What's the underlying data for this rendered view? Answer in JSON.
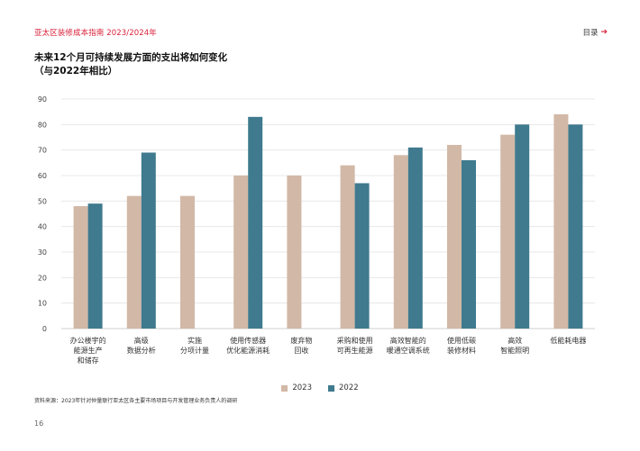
{
  "header": {
    "title": "亚太区装修成本指南 2023/2024年"
  },
  "toc": {
    "label": "目录",
    "arrow": "➔"
  },
  "colors": {
    "accent": "#d8203a",
    "series_2023": "#d2b8a6",
    "series_2022": "#3f7a8e",
    "grid": "#e3e3e3",
    "axis": "#bfbfbf"
  },
  "chart_data": {
    "type": "bar",
    "title": [
      "未来12个月可持续发展方面的支出将如何变化",
      "（与2022年相比）"
    ],
    "categories": [
      [
        "办公楼宇的",
        "能源生产",
        "和储存"
      ],
      [
        "高级",
        "数据分析"
      ],
      [
        "实施",
        "分项计量"
      ],
      [
        "使用传感器",
        "优化能源消耗"
      ],
      [
        "废弃物",
        "回收"
      ],
      [
        "采购和使用",
        "可再生能源"
      ],
      [
        "高效智能的",
        "暖通空调系统"
      ],
      [
        "使用低碳",
        "装修材料"
      ],
      [
        "高效",
        "智能照明"
      ],
      [
        "低能耗电器"
      ]
    ],
    "series": [
      {
        "name": "2023",
        "values": [
          48,
          52,
          52,
          60,
          60,
          64,
          68,
          72,
          76,
          84
        ]
      },
      {
        "name": "2022",
        "values": [
          49,
          69,
          null,
          83,
          null,
          57,
          71,
          66,
          80,
          80
        ]
      }
    ],
    "ylim": [
      0,
      90
    ],
    "yticks": [
      0,
      10,
      20,
      30,
      40,
      50,
      60,
      70,
      80,
      90
    ],
    "grid": true,
    "legend": "bottom-center"
  },
  "source": "资料来源：2023年针对仲量联行亚太区各主要市场项目与开发管理业务负责人的调研",
  "page": {
    "number": "16"
  }
}
